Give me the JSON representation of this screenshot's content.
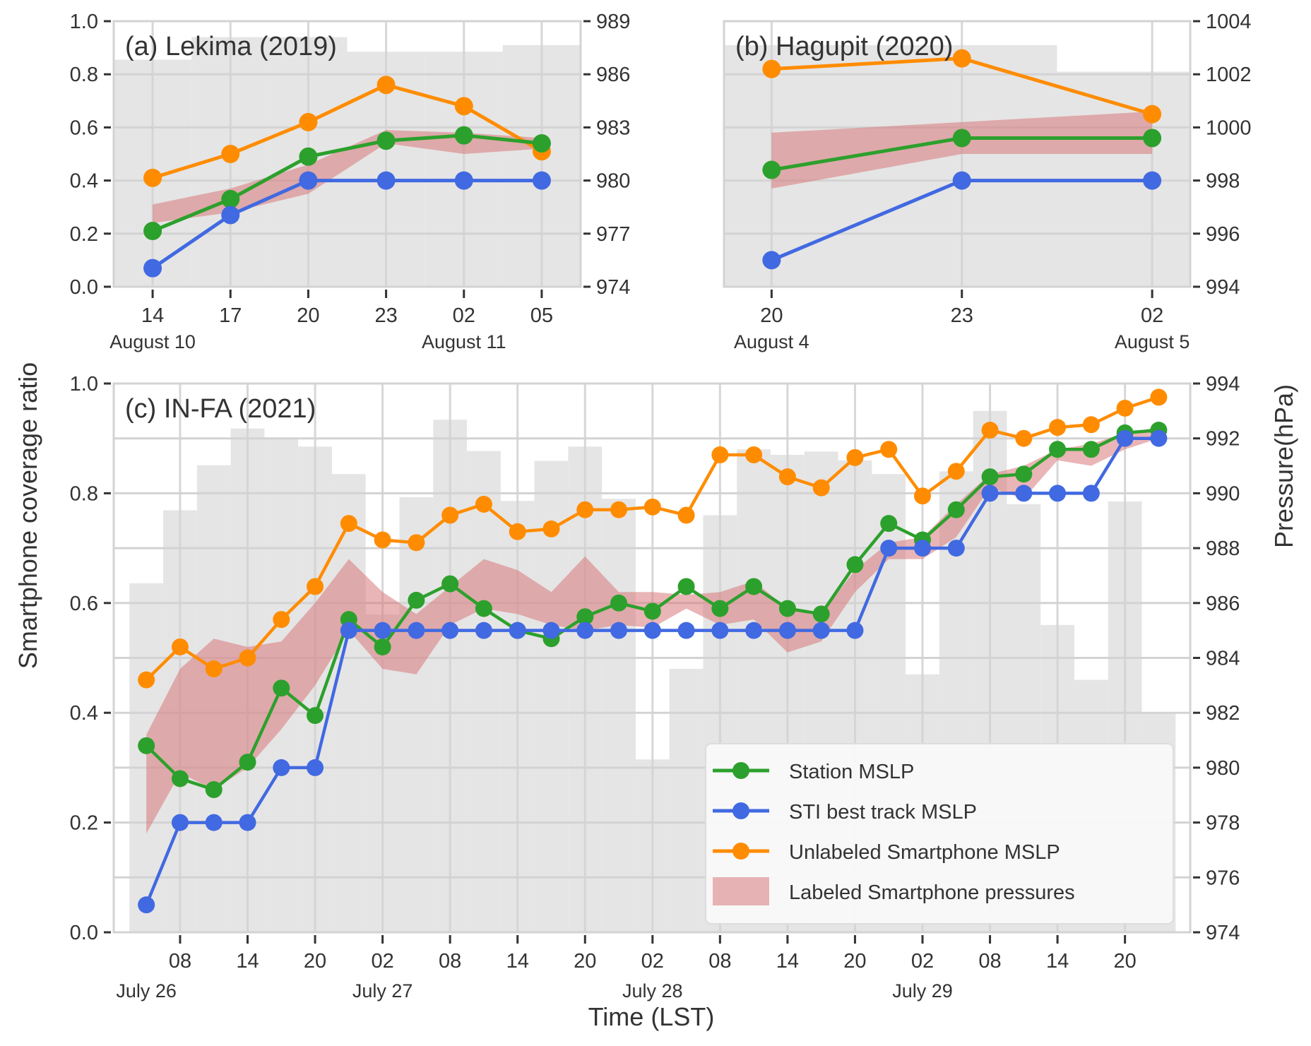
{
  "figure": {
    "ylabel_left": "Smartphone coverage ratio",
    "ylabel_right": "Pressure(hPa)",
    "xlabel": "Time (LST)"
  },
  "colors": {
    "station": "#2ca02c",
    "sti": "#4169e1",
    "unlabeled": "#ff8c00",
    "band": "#d9787a",
    "coverage_bars": "#e5e5e5",
    "grid": "#d3d3d3",
    "text": "#333333"
  },
  "legend": {
    "placement": "lower-right of panel (c)",
    "items": [
      {
        "key": "station",
        "label": "Station MSLP",
        "type": "line-marker"
      },
      {
        "key": "sti",
        "label": "STI best track MSLP",
        "type": "line-marker"
      },
      {
        "key": "unlabeled",
        "label": "Unlabeled Smartphone MSLP",
        "type": "line-marker"
      },
      {
        "key": "band",
        "label": "Labeled Smartphone pressures",
        "type": "patch"
      }
    ]
  },
  "chart_data": [
    {
      "id": "a",
      "type": "line",
      "title": "(a) Lekima (2019)",
      "x_unit": "hours since August 10 00:00 LST",
      "x": [
        14,
        17,
        20,
        23,
        26,
        29
      ],
      "xlim": [
        12.5,
        30.5
      ],
      "x_ticks": [
        {
          "x": 14,
          "label": "14",
          "date": "August 10"
        },
        {
          "x": 17,
          "label": "17",
          "date": ""
        },
        {
          "x": 20,
          "label": "20",
          "date": ""
        },
        {
          "x": 23,
          "label": "23",
          "date": ""
        },
        {
          "x": 26,
          "label": "02",
          "date": "August 11"
        },
        {
          "x": 29,
          "label": "05",
          "date": ""
        }
      ],
      "ylim_left": [
        0,
        1
      ],
      "y_ticks_left": [
        "0.0",
        "0.2",
        "0.4",
        "0.6",
        "0.8",
        "1.0"
      ],
      "ylim_right": [
        974,
        989
      ],
      "y_ticks_right": [
        "974",
        "977",
        "980",
        "983",
        "986",
        "989"
      ],
      "grid": true,
      "coverage_ratio": [
        0.855,
        0.94,
        0.94,
        0.885,
        0.885,
        0.91
      ],
      "series": [
        {
          "name": "Station MSLP",
          "key": "station",
          "values_ratio": [
            0.21,
            0.33,
            0.49,
            0.55,
            0.57,
            0.54
          ]
        },
        {
          "name": "STI best track MSLP",
          "key": "sti",
          "values_ratio": [
            0.07,
            0.27,
            0.4,
            0.4,
            0.4,
            0.4
          ]
        },
        {
          "name": "Unlabeled Smartphone MSLP",
          "key": "unlabeled",
          "values_ratio": [
            0.41,
            0.5,
            0.62,
            0.76,
            0.68,
            0.51
          ]
        }
      ],
      "band": {
        "name": "Labeled Smartphone pressures",
        "upper_ratio": [
          0.31,
          0.37,
          0.46,
          0.59,
          0.58,
          0.56
        ],
        "lower_ratio": [
          0.24,
          0.28,
          0.35,
          0.54,
          0.5,
          0.52
        ]
      }
    },
    {
      "id": "b",
      "type": "line",
      "title": "(b) Hagupit (2020)",
      "x_unit": "hours since August 4 00:00 LST",
      "x": [
        20,
        23,
        26
      ],
      "xlim": [
        19.25,
        26.6
      ],
      "x_ticks": [
        {
          "x": 20,
          "label": "20",
          "date": "August 4"
        },
        {
          "x": 23,
          "label": "23",
          "date": ""
        },
        {
          "x": 26,
          "label": "02",
          "date": "August 5"
        }
      ],
      "ylim_left": [
        0,
        1
      ],
      "y_ticks_left": [],
      "ylim_right": [
        994,
        1004
      ],
      "y_ticks_right": [
        "994",
        "996",
        "998",
        "1000",
        "1002",
        "1004"
      ],
      "grid": true,
      "coverage_ratio": [
        0.91,
        0.91,
        0.81
      ],
      "series": [
        {
          "name": "Station MSLP",
          "key": "station",
          "values_ratio": [
            0.44,
            0.56,
            0.56
          ]
        },
        {
          "name": "STI best track MSLP",
          "key": "sti",
          "values_ratio": [
            0.1,
            0.4,
            0.4
          ]
        },
        {
          "name": "Unlabeled Smartphone MSLP",
          "key": "unlabeled",
          "values_ratio": [
            0.82,
            0.86,
            0.65
          ]
        }
      ],
      "band": {
        "name": "Labeled Smartphone pressures",
        "upper_ratio": [
          0.58,
          0.62,
          0.66
        ],
        "lower_ratio": [
          0.37,
          0.5,
          0.5
        ]
      }
    },
    {
      "id": "c",
      "type": "line",
      "title": "(c) IN-FA (2021)",
      "x_unit": "hours since July 26 00:00 LST",
      "x": [
        5,
        8,
        11,
        14,
        17,
        20,
        23,
        26,
        29,
        32,
        35,
        38,
        41,
        44,
        47,
        50,
        53,
        56,
        59,
        62,
        65,
        68,
        71,
        74,
        77,
        80,
        83,
        86,
        89,
        92,
        95
      ],
      "xlim": [
        2.1,
        97.8
      ],
      "x_ticks": [
        {
          "x": 8,
          "label": "08",
          "date": ""
        },
        {
          "x": 14,
          "label": "14",
          "date": ""
        },
        {
          "x": 20,
          "label": "20",
          "date": ""
        },
        {
          "x": 26,
          "label": "02",
          "date": ""
        },
        {
          "x": 32,
          "label": "08",
          "date": ""
        },
        {
          "x": 38,
          "label": "14",
          "date": ""
        },
        {
          "x": 44,
          "label": "20",
          "date": ""
        },
        {
          "x": 50,
          "label": "02",
          "date": ""
        },
        {
          "x": 56,
          "label": "08",
          "date": ""
        },
        {
          "x": 62,
          "label": "14",
          "date": ""
        },
        {
          "x": 68,
          "label": "20",
          "date": ""
        },
        {
          "x": 74,
          "label": "02",
          "date": ""
        },
        {
          "x": 80,
          "label": "08",
          "date": ""
        },
        {
          "x": 86,
          "label": "14",
          "date": ""
        },
        {
          "x": 92,
          "label": "20",
          "date": ""
        }
      ],
      "date_labels": [
        {
          "x": 5,
          "label": "July 26"
        },
        {
          "x": 26,
          "label": "July 27"
        },
        {
          "x": 50,
          "label": "July 28"
        },
        {
          "x": 74,
          "label": "July 29"
        }
      ],
      "ylim_left": [
        0,
        1
      ],
      "y_ticks_left": [
        "0.0",
        "0.2",
        "0.4",
        "0.6",
        "0.8",
        "1.0"
      ],
      "ylim_right": [
        974,
        994
      ],
      "y_ticks_right": [
        "974",
        "976",
        "978",
        "980",
        "982",
        "984",
        "986",
        "988",
        "990",
        "992",
        "994"
      ],
      "grid": true,
      "coverage_ratio": [
        0.636,
        0.769,
        0.851,
        0.918,
        0.902,
        0.885,
        0.835,
        0.579,
        0.793,
        0.934,
        0.877,
        0.786,
        0.859,
        0.885,
        0.79,
        0.315,
        0.48,
        0.76,
        0.88,
        0.87,
        0.876,
        0.86,
        0.835,
        0.47,
        0.84,
        0.95,
        0.78,
        0.56,
        0.46,
        0.785,
        0.4
      ],
      "series": [
        {
          "name": "Station MSLP",
          "key": "station",
          "values_ratio": [
            0.34,
            0.28,
            0.26,
            0.31,
            0.445,
            0.395,
            0.57,
            0.52,
            0.605,
            0.635,
            0.59,
            0.55,
            0.535,
            0.575,
            0.6,
            0.585,
            0.63,
            0.59,
            0.63,
            0.59,
            0.58,
            0.67,
            0.745,
            0.715,
            0.77,
            0.83,
            0.835,
            0.88,
            0.88,
            0.91,
            0.915
          ]
        },
        {
          "name": "STI best track MSLP",
          "key": "sti",
          "values_ratio": [
            0.05,
            0.2,
            0.2,
            0.2,
            0.3,
            0.3,
            0.55,
            0.55,
            0.55,
            0.55,
            0.55,
            0.55,
            0.55,
            0.55,
            0.55,
            0.55,
            0.55,
            0.55,
            0.55,
            0.55,
            0.55,
            0.55,
            0.7,
            0.7,
            0.7,
            0.8,
            0.8,
            0.8,
            0.8,
            0.9,
            0.9
          ]
        },
        {
          "name": "Unlabeled Smartphone MSLP",
          "key": "unlabeled",
          "values_ratio": [
            0.46,
            0.52,
            0.48,
            0.5,
            0.57,
            0.63,
            0.745,
            0.715,
            0.71,
            0.76,
            0.78,
            0.73,
            0.735,
            0.77,
            0.77,
            0.775,
            0.76,
            0.87,
            0.87,
            0.83,
            0.81,
            0.865,
            0.88,
            0.795,
            0.84,
            0.915,
            0.9,
            0.92,
            0.925,
            0.955,
            0.975
          ]
        }
      ],
      "band": {
        "name": "Labeled Smartphone pressures",
        "upper_ratio": [
          0.36,
          0.48,
          0.535,
          0.52,
          0.53,
          0.6,
          0.68,
          0.62,
          0.58,
          0.63,
          0.68,
          0.66,
          0.62,
          0.685,
          0.62,
          0.62,
          0.615,
          0.62,
          0.64,
          0.59,
          0.58,
          0.66,
          0.71,
          0.72,
          0.78,
          0.835,
          0.85,
          0.88,
          0.89,
          0.91,
          0.92
        ],
        "lower_ratio": [
          0.18,
          0.29,
          0.26,
          0.3,
          0.37,
          0.45,
          0.55,
          0.48,
          0.47,
          0.56,
          0.59,
          0.58,
          0.56,
          0.55,
          0.56,
          0.555,
          0.59,
          0.56,
          0.57,
          0.51,
          0.53,
          0.62,
          0.68,
          0.68,
          0.72,
          0.81,
          0.79,
          0.86,
          0.85,
          0.88,
          0.9
        ]
      }
    }
  ]
}
